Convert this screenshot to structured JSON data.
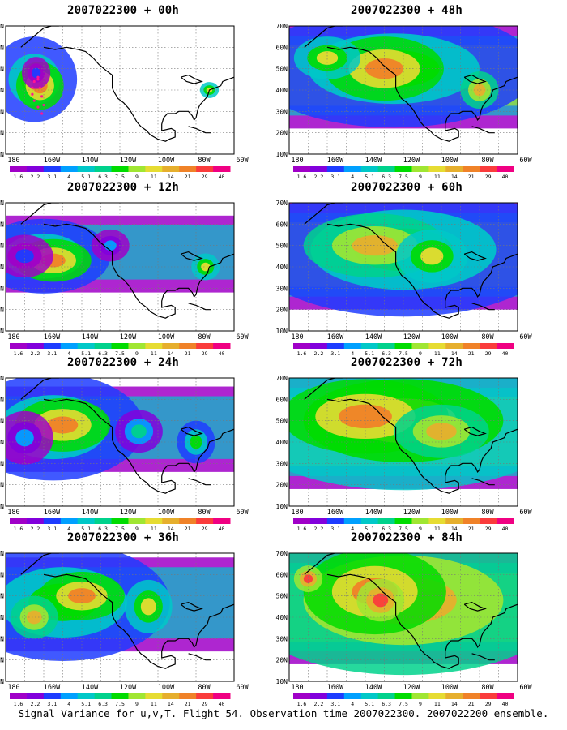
{
  "caption": "Signal Variance for u,v,T. Flight 54. Observation time 2007022300. 2007022200 ensemble.",
  "axes": {
    "lat_labels": [
      "70N",
      "60N",
      "50N",
      "40N",
      "30N",
      "20N",
      "10N"
    ],
    "lon_labels": [
      "180",
      "160W",
      "140W",
      "120W",
      "100W",
      "80W",
      "60W"
    ]
  },
  "colorbar": {
    "labels": [
      "1.6",
      "2.2",
      "3.1",
      "4",
      "5.1",
      "6.3",
      "7.5",
      "9",
      "11",
      "14",
      "21",
      "29",
      "40"
    ],
    "colors": [
      "#a000c8",
      "#8200dc",
      "#1e3cff",
      "#00a0ff",
      "#00c8c8",
      "#00d28c",
      "#00dc00",
      "#a0e632",
      "#e6dc32",
      "#e6af2d",
      "#f08228",
      "#fa3c3c",
      "#f00082"
    ]
  },
  "panels": [
    {
      "id": "p00",
      "title": "2007022300 + 00h",
      "fill_level": 0
    },
    {
      "id": "p48",
      "title": "2007022300 + 48h",
      "fill_level": 4
    },
    {
      "id": "p12",
      "title": "2007022300 + 12h",
      "fill_level": 1
    },
    {
      "id": "p60",
      "title": "2007022300 + 60h",
      "fill_level": 5
    },
    {
      "id": "p24",
      "title": "2007022300 + 24h",
      "fill_level": 2
    },
    {
      "id": "p72",
      "title": "2007022300 + 72h",
      "fill_level": 6
    },
    {
      "id": "p36",
      "title": "2007022300 + 36h",
      "fill_level": 3
    },
    {
      "id": "p84",
      "title": "2007022300 + 84h",
      "fill_level": 7
    }
  ]
}
